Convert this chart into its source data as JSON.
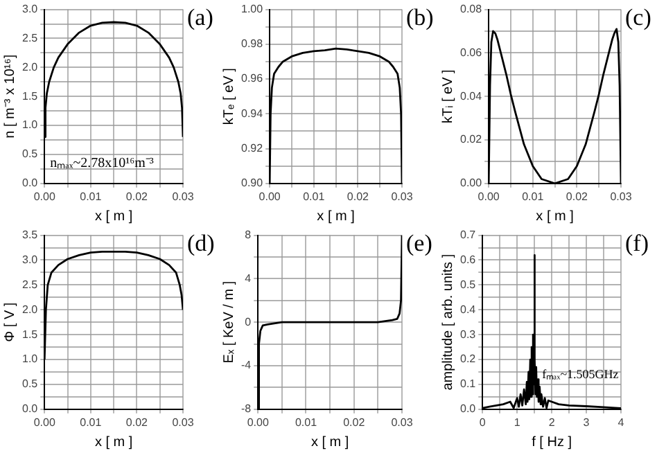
{
  "chart_data": [
    {
      "type": "line",
      "title": "(a)",
      "xlabel": "x [ m ]",
      "ylabel": "n [ m⁻³ x 10¹⁶]",
      "color": "#000000",
      "grid": true,
      "x": [
        0,
        0.0002,
        0.0005,
        0.001,
        0.002,
        0.003,
        0.005,
        0.0075,
        0.01,
        0.0125,
        0.015,
        0.0175,
        0.02,
        0.0225,
        0.025,
        0.027,
        0.028,
        0.029,
        0.0295,
        0.0298,
        0.03
      ],
      "values": [
        0.8,
        1.3,
        1.55,
        1.75,
        2.0,
        2.17,
        2.4,
        2.6,
        2.72,
        2.77,
        2.78,
        2.77,
        2.72,
        2.6,
        2.4,
        2.17,
        2.0,
        1.75,
        1.55,
        1.3,
        0.8
      ],
      "xlim": [
        0,
        0.03
      ],
      "ylim": [
        0,
        3
      ],
      "xticks": [
        {
          "value": 0,
          "label": "0.00"
        },
        {
          "value": 0.005,
          "label": null
        },
        {
          "value": 0.01,
          "label": "0.01"
        },
        {
          "value": 0.015,
          "label": null
        },
        {
          "value": 0.02,
          "label": "0.02"
        },
        {
          "value": 0.025,
          "label": null
        },
        {
          "value": 0.03,
          "label": "0.03"
        }
      ],
      "yticks": [
        {
          "value": 0,
          "label": "0.0"
        },
        {
          "value": 0.25,
          "label": null
        },
        {
          "value": 0.5,
          "label": "0.5"
        },
        {
          "value": 0.75,
          "label": null
        },
        {
          "value": 1,
          "label": "1.0"
        },
        {
          "value": 1.25,
          "label": null
        },
        {
          "value": 1.5,
          "label": "1.5"
        },
        {
          "value": 1.75,
          "label": null
        },
        {
          "value": 2,
          "label": "2.0"
        },
        {
          "value": 2.25,
          "label": null
        },
        {
          "value": 2.5,
          "label": "2.5"
        },
        {
          "value": 2.75,
          "label": null
        },
        {
          "value": 3,
          "label": "3.0"
        }
      ],
      "annotations": [
        "nₘₐₓ~2.78x10¹⁶m⁻³"
      ]
    },
    {
      "type": "line",
      "title": "(b)",
      "xlabel": "x [ m ]",
      "ylabel": "kTₑ [ eV ]",
      "color": "#000000",
      "grid": true,
      "x": [
        0,
        0.0002,
        0.0005,
        0.001,
        0.002,
        0.003,
        0.005,
        0.0075,
        0.01,
        0.0125,
        0.015,
        0.0175,
        0.02,
        0.0225,
        0.025,
        0.027,
        0.028,
        0.029,
        0.0295,
        0.0298,
        0.03
      ],
      "values": [
        0.9,
        0.94,
        0.955,
        0.963,
        0.967,
        0.97,
        0.973,
        0.975,
        0.976,
        0.9765,
        0.9775,
        0.977,
        0.976,
        0.975,
        0.973,
        0.97,
        0.967,
        0.963,
        0.955,
        0.94,
        0.9
      ],
      "xlim": [
        0,
        0.03
      ],
      "ylim": [
        0.9,
        1.0
      ],
      "xticks": [
        {
          "value": 0,
          "label": "0.00"
        },
        {
          "value": 0.005,
          "label": null
        },
        {
          "value": 0.01,
          "label": "0.01"
        },
        {
          "value": 0.015,
          "label": null
        },
        {
          "value": 0.02,
          "label": "0.02"
        },
        {
          "value": 0.025,
          "label": null
        },
        {
          "value": 0.03,
          "label": "0.03"
        }
      ],
      "yticks": [
        {
          "value": 0.9,
          "label": "0.90"
        },
        {
          "value": 0.91,
          "label": null
        },
        {
          "value": 0.92,
          "label": "0.92"
        },
        {
          "value": 0.93,
          "label": null
        },
        {
          "value": 0.94,
          "label": "0.94"
        },
        {
          "value": 0.95,
          "label": null
        },
        {
          "value": 0.96,
          "label": "0.96"
        },
        {
          "value": 0.97,
          "label": null
        },
        {
          "value": 0.98,
          "label": "0.98"
        },
        {
          "value": 0.99,
          "label": null
        },
        {
          "value": 1.0,
          "label": "1.00"
        }
      ]
    },
    {
      "type": "line",
      "title": "(c)",
      "xlabel": "x [ m ]",
      "ylabel": "kTᵢ [ eV ]",
      "color": "#000000",
      "grid": true,
      "x": [
        0,
        0.0003,
        0.0006,
        0.001,
        0.0015,
        0.002,
        0.003,
        0.004,
        0.005,
        0.006,
        0.008,
        0.01,
        0.012,
        0.015,
        0.018,
        0.02,
        0.022,
        0.024,
        0.025,
        0.026,
        0.027,
        0.028,
        0.0285,
        0.029,
        0.0294,
        0.0297,
        0.03
      ],
      "values": [
        0.0,
        0.045,
        0.065,
        0.07,
        0.069,
        0.066,
        0.058,
        0.05,
        0.041,
        0.033,
        0.018,
        0.008,
        0.002,
        0.0,
        0.002,
        0.008,
        0.018,
        0.033,
        0.041,
        0.05,
        0.058,
        0.066,
        0.069,
        0.071,
        0.065,
        0.045,
        0.0
      ],
      "xlim": [
        0,
        0.03
      ],
      "ylim": [
        0,
        0.08
      ],
      "xticks": [
        {
          "value": 0,
          "label": "0.00"
        },
        {
          "value": 0.005,
          "label": null
        },
        {
          "value": 0.01,
          "label": "0.01"
        },
        {
          "value": 0.015,
          "label": null
        },
        {
          "value": 0.02,
          "label": "0.02"
        },
        {
          "value": 0.025,
          "label": null
        },
        {
          "value": 0.03,
          "label": "0.03"
        }
      ],
      "yticks": [
        {
          "value": 0,
          "label": "0.00"
        },
        {
          "value": 0.01,
          "label": null
        },
        {
          "value": 0.02,
          "label": "0.02"
        },
        {
          "value": 0.03,
          "label": null
        },
        {
          "value": 0.04,
          "label": "0.04"
        },
        {
          "value": 0.05,
          "label": null
        },
        {
          "value": 0.06,
          "label": "0.06"
        },
        {
          "value": 0.07,
          "label": null
        },
        {
          "value": 0.08,
          "label": "0.08"
        }
      ]
    },
    {
      "type": "line",
      "title": "(d)",
      "xlabel": "x [ m ]",
      "ylabel": "Φ [ V ]",
      "color": "#000000",
      "grid": true,
      "x": [
        0,
        0.0003,
        0.0007,
        0.0015,
        0.003,
        0.005,
        0.0075,
        0.01,
        0.0125,
        0.015,
        0.0175,
        0.02,
        0.0225,
        0.025,
        0.027,
        0.0285,
        0.0293,
        0.0297,
        0.03
      ],
      "values": [
        1.0,
        2.0,
        2.5,
        2.75,
        2.9,
        3.02,
        3.1,
        3.15,
        3.17,
        3.17,
        3.17,
        3.15,
        3.1,
        3.02,
        2.9,
        2.75,
        2.5,
        2.3,
        2.0
      ],
      "xlim": [
        0,
        0.03
      ],
      "ylim": [
        0,
        3.5
      ],
      "xticks": [
        {
          "value": 0,
          "label": "0.00"
        },
        {
          "value": 0.005,
          "label": null
        },
        {
          "value": 0.01,
          "label": "0.01"
        },
        {
          "value": 0.015,
          "label": null
        },
        {
          "value": 0.02,
          "label": "0.02"
        },
        {
          "value": 0.025,
          "label": null
        },
        {
          "value": 0.03,
          "label": "0.03"
        }
      ],
      "yticks": [
        {
          "value": 0,
          "label": "0.0"
        },
        {
          "value": 0.25,
          "label": null
        },
        {
          "value": 0.5,
          "label": "0.5"
        },
        {
          "value": 0.75,
          "label": null
        },
        {
          "value": 1,
          "label": "1.0"
        },
        {
          "value": 1.25,
          "label": null
        },
        {
          "value": 1.5,
          "label": "1.5"
        },
        {
          "value": 1.75,
          "label": null
        },
        {
          "value": 2,
          "label": "2.0"
        },
        {
          "value": 2.25,
          "label": null
        },
        {
          "value": 2.5,
          "label": "2.5"
        },
        {
          "value": 2.75,
          "label": null
        },
        {
          "value": 3,
          "label": "3.0"
        },
        {
          "value": 3.25,
          "label": null
        },
        {
          "value": 3.5,
          "label": "3.5"
        }
      ]
    },
    {
      "type": "line",
      "title": "(e)",
      "xlabel": "x [ m ]",
      "ylabel": "Eₓ [ KeV / m ]",
      "color": "#000000",
      "grid": true,
      "x": [
        0,
        0.0002,
        0.0005,
        0.001,
        0.002,
        0.005,
        0.01,
        0.015,
        0.02,
        0.025,
        0.028,
        0.029,
        0.0295,
        0.0298,
        0.03
      ],
      "values": [
        -8,
        -2,
        -0.8,
        -0.3,
        -0.2,
        0,
        0,
        0,
        0,
        0,
        0.2,
        0.3,
        0.8,
        2,
        8
      ],
      "xlim": [
        0,
        0.03
      ],
      "ylim": [
        -8,
        8
      ],
      "xticks": [
        {
          "value": 0,
          "label": "0.00"
        },
        {
          "value": 0.005,
          "label": null
        },
        {
          "value": 0.01,
          "label": "0.01"
        },
        {
          "value": 0.015,
          "label": null
        },
        {
          "value": 0.02,
          "label": "0.02"
        },
        {
          "value": 0.025,
          "label": null
        },
        {
          "value": 0.03,
          "label": "0.03"
        }
      ],
      "yticks": [
        -8,
        {
          "value": -6,
          "label": null
        },
        -4,
        {
          "value": -2,
          "label": null
        },
        0,
        {
          "value": 2,
          "label": null
        },
        4,
        {
          "value": 6,
          "label": null
        },
        8
      ]
    },
    {
      "type": "line",
      "title": "(f)",
      "xlabel": "f [ Hz ]",
      "ylabel": "amplitude [ arb. units ]",
      "color": "#000000",
      "grid": true,
      "x": [
        0,
        0.2,
        0.4,
        0.6,
        0.8,
        0.9,
        1.0,
        1.05,
        1.1,
        1.15,
        1.2,
        1.25,
        1.28,
        1.3,
        1.33,
        1.35,
        1.38,
        1.4,
        1.42,
        1.44,
        1.46,
        1.48,
        1.5,
        1.505,
        1.51,
        1.53,
        1.55,
        1.57,
        1.6,
        1.62,
        1.65,
        1.68,
        1.7,
        1.75,
        1.8,
        1.85,
        1.9,
        2.0,
        2.2,
        2.5,
        3.0,
        3.5,
        4.0
      ],
      "values": [
        0.005,
        0.01,
        0.015,
        0.02,
        0.03,
        0.005,
        0.045,
        0.01,
        0.06,
        0.015,
        0.08,
        0.02,
        0.11,
        0.03,
        0.15,
        0.04,
        0.2,
        0.05,
        0.25,
        0.06,
        0.3,
        0.1,
        0.62,
        0.3,
        0.2,
        0.06,
        0.17,
        0.05,
        0.12,
        0.03,
        0.09,
        0.02,
        0.06,
        0.01,
        0.045,
        0.005,
        0.035,
        0.03,
        0.02,
        0.015,
        0.012,
        0.008,
        0.004
      ],
      "xlim": [
        0,
        4
      ],
      "ylim": [
        0,
        0.7
      ],
      "xticks": [
        0,
        {
          "value": 0.5,
          "label": null
        },
        1,
        {
          "value": 1.5,
          "label": null
        },
        2,
        {
          "value": 2.5,
          "label": null
        },
        3,
        {
          "value": 3.5,
          "label": null
        },
        4
      ],
      "yticks": [
        {
          "value": 0,
          "label": "0.0"
        },
        {
          "value": 0.05,
          "label": null
        },
        {
          "value": 0.1,
          "label": "0.1"
        },
        {
          "value": 0.15,
          "label": null
        },
        {
          "value": 0.2,
          "label": "0.2"
        },
        {
          "value": 0.25,
          "label": null
        },
        {
          "value": 0.3,
          "label": "0.3"
        },
        {
          "value": 0.35,
          "label": null
        },
        {
          "value": 0.4,
          "label": "0.4"
        },
        {
          "value": 0.45,
          "label": null
        },
        {
          "value": 0.5,
          "label": "0.5"
        },
        {
          "value": 0.55,
          "label": null
        },
        {
          "value": 0.6,
          "label": "0.6"
        },
        {
          "value": 0.65,
          "label": null
        },
        {
          "value": 0.7,
          "label": "0.7"
        }
      ],
      "annotations": [
        "fₘₐₓ~1.505GHz"
      ]
    }
  ]
}
